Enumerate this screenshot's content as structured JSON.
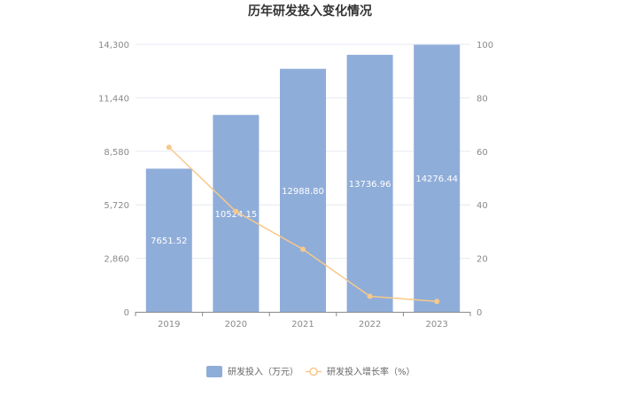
{
  "chart_data": {
    "type": "bar",
    "title": "历年研发投入变化情况",
    "categories": [
      "2019",
      "2020",
      "2021",
      "2022",
      "2023"
    ],
    "series": [
      {
        "name": "研发投入（万元）",
        "type": "bar",
        "axis": "left",
        "color": "#8fadd9",
        "values": [
          7651.52,
          10524.15,
          12988.8,
          13736.96,
          14276.44
        ],
        "labels": [
          "7651.52",
          "10524.15",
          "12988.80",
          "13736.96",
          "14276.44"
        ]
      },
      {
        "name": "研发投入增长率（%）",
        "type": "line",
        "axis": "right",
        "color": "#f7c98b",
        "values": [
          61.5,
          37.5,
          23.4,
          5.8,
          3.9
        ]
      }
    ],
    "y_left": {
      "min": 0,
      "max": 14300,
      "ticks": [
        "0",
        "2,860",
        "5,720",
        "8,580",
        "11,440",
        "14,300"
      ]
    },
    "y_right": {
      "min": 0,
      "max": 100,
      "ticks": [
        "0",
        "20",
        "40",
        "60",
        "80",
        "100"
      ]
    },
    "grid": true,
    "legend_position": "bottom"
  }
}
